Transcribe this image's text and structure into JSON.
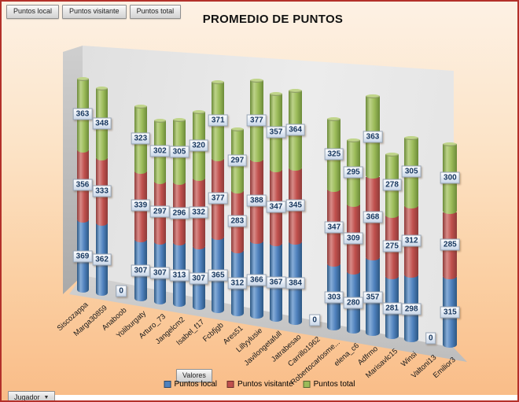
{
  "title": "PROMEDIO DE PUNTOS",
  "field_buttons": [
    {
      "label": "Puntos local"
    },
    {
      "label": "Puntos visitante"
    },
    {
      "label": "Puntos total"
    }
  ],
  "values_button": {
    "label": "Valores"
  },
  "axis_field_button": {
    "label": "Jugador"
  },
  "legend": [
    {
      "label": "Puntos local",
      "color": "#4f81bd"
    },
    {
      "label": "Puntos visitante",
      "color": "#c0504d"
    },
    {
      "label": "Puntos total",
      "color": "#9bbb59"
    }
  ],
  "colors": {
    "frame_border": "#b3302a",
    "background_top": "#fdf1e4",
    "background_bottom": "#f9bc87",
    "wall": "#e8e8e8",
    "data_label_text": "#17375e"
  },
  "chart_data": {
    "type": "bar",
    "subtype": "3d-stacked-cylinder",
    "title": "PROMEDIO DE PUNTOS",
    "legend_position": "bottom",
    "data_labels": true,
    "xlabel": "Jugador",
    "ylabel": "",
    "categories": [
      "Siscozappa",
      "Marga30859",
      "Anaboob",
      "Yoliburgaty",
      "Arturo_73",
      "Jangelcm2",
      "Isabel_f17",
      "Fcbfjgb",
      "Ares51",
      "Lillyylusie",
      "Javilongetafull",
      "Jatrabesao",
      "Carrillo1962",
      "Robertocarlosme...",
      "elena_c6",
      "Adfrmo",
      "Marisavlc15",
      "Winsi",
      "Valtoni13",
      "Emilior3"
    ],
    "series": [
      {
        "name": "Puntos local",
        "color": "#4f81bd",
        "values": [
          369,
          362,
          0,
          307,
          307,
          313,
          307,
          365,
          312,
          366,
          367,
          384,
          0,
          303,
          280,
          357,
          281,
          298,
          0,
          315
        ]
      },
      {
        "name": "Puntos visitante",
        "color": "#c0504d",
        "values": [
          356,
          333,
          0,
          339,
          297,
          296,
          332,
          377,
          283,
          388,
          347,
          345,
          0,
          347,
          309,
          368,
          275,
          312,
          0,
          285
        ]
      },
      {
        "name": "Puntos total",
        "color": "#9bbb59",
        "values": [
          363,
          348,
          0,
          323,
          302,
          305,
          320,
          371,
          297,
          377,
          357,
          364,
          0,
          325,
          295,
          363,
          278,
          305,
          0,
          300
        ]
      }
    ]
  }
}
